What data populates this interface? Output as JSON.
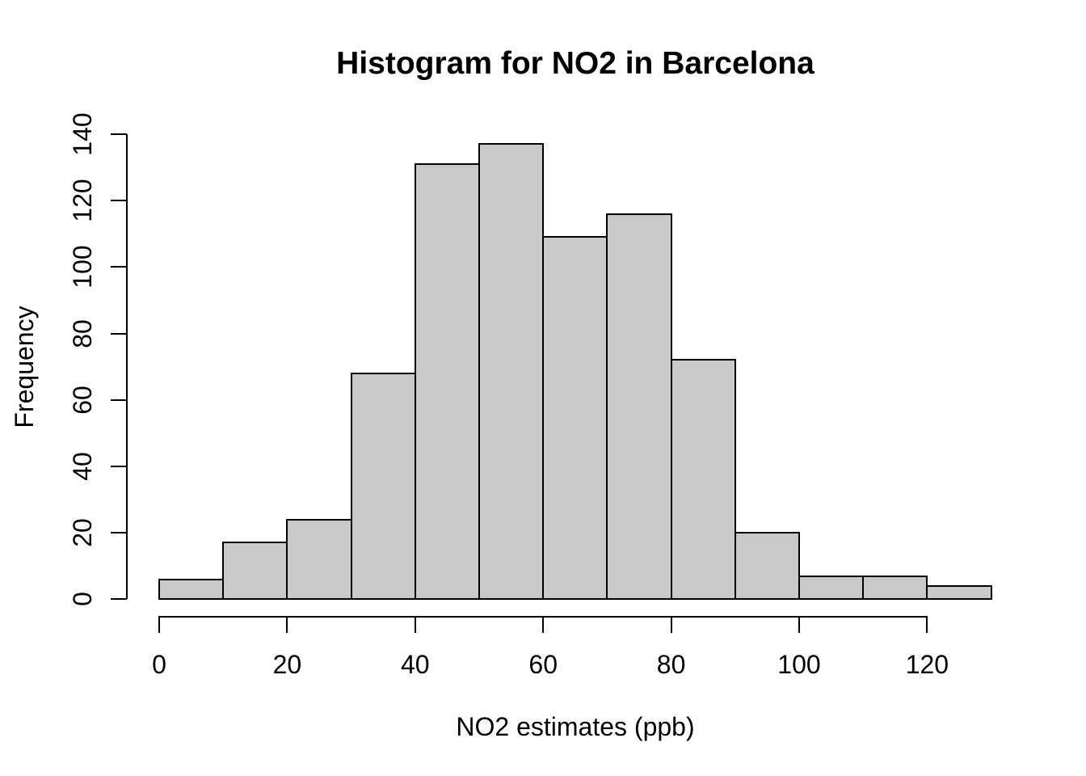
{
  "chart_data": {
    "type": "bar",
    "subtype": "histogram",
    "title": "Histogram for NO2 in Barcelona",
    "xlabel": "NO2 estimates (ppb)",
    "ylabel": "Frequency",
    "bin_edges": [
      0,
      10,
      20,
      30,
      40,
      50,
      60,
      70,
      80,
      90,
      100,
      110,
      120,
      130
    ],
    "values": [
      6,
      17,
      24,
      68,
      131,
      137,
      109,
      116,
      72,
      20,
      7,
      7,
      4
    ],
    "x_ticks": [
      0,
      20,
      40,
      60,
      80,
      100,
      120
    ],
    "y_ticks": [
      0,
      20,
      40,
      60,
      80,
      100,
      120,
      140
    ],
    "x_tick_labels": [
      "0",
      "20",
      "40",
      "60",
      "80",
      "100",
      "120"
    ],
    "y_tick_labels": [
      "0",
      "20",
      "40",
      "60",
      "80",
      "100",
      "120",
      "140"
    ],
    "xlim": [
      0,
      130
    ],
    "ylim": [
      0,
      140
    ],
    "grid": false,
    "legend": "none",
    "colors": {
      "bar_fill": "#c9c9c9",
      "bar_border": "#000000",
      "axis": "#000000",
      "text": "#000000",
      "background": "#ffffff"
    }
  }
}
